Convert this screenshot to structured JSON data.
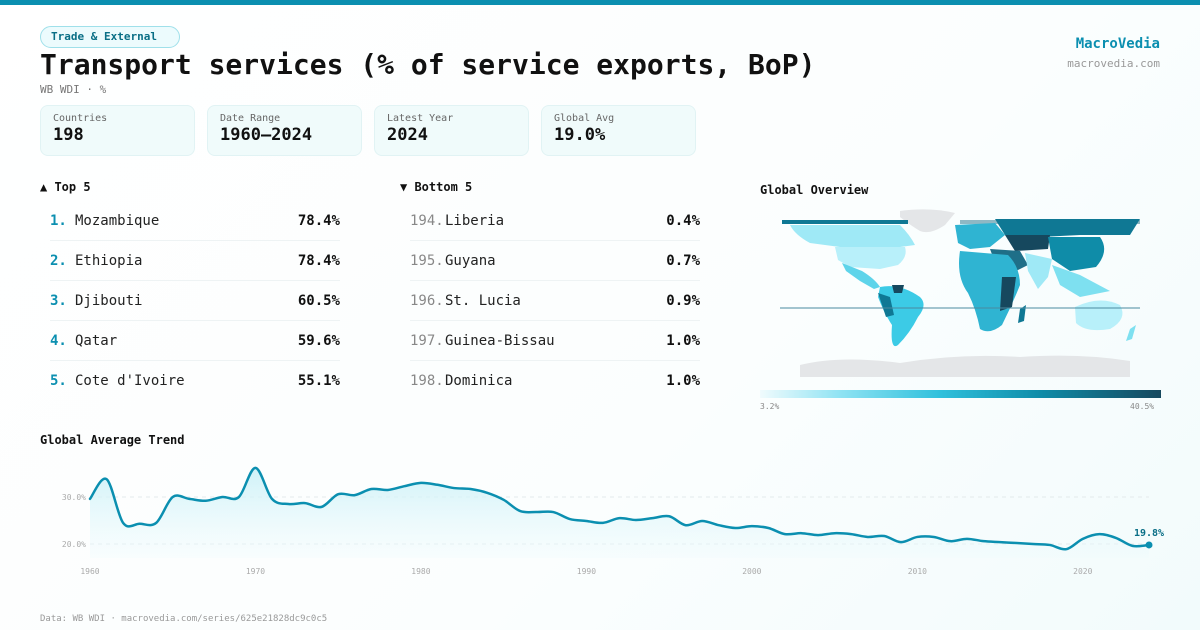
{
  "header": {
    "category_tag": "Trade & External",
    "title": "Transport services (% of service exports, BoP)",
    "subtitle": "WB WDI · %",
    "brand_name": "MacroVedia",
    "brand_url": "macrovedia.com"
  },
  "stats": [
    {
      "label": "Countries",
      "value": "198"
    },
    {
      "label": "Date Range",
      "value": "1960–2024"
    },
    {
      "label": "Latest Year",
      "value": "2024"
    },
    {
      "label": "Global Avg",
      "value": "19.0%"
    }
  ],
  "top5": {
    "title": "▲ Top 5",
    "items": [
      {
        "rank": "1.",
        "name": "Mozambique",
        "value": "78.4%"
      },
      {
        "rank": "2.",
        "name": "Ethiopia",
        "value": "78.4%"
      },
      {
        "rank": "3.",
        "name": "Djibouti",
        "value": "60.5%"
      },
      {
        "rank": "4.",
        "name": "Qatar",
        "value": "59.6%"
      },
      {
        "rank": "5.",
        "name": "Cote d'Ivoire",
        "value": "55.1%"
      }
    ]
  },
  "bottom5": {
    "title": "▼ Bottom 5",
    "items": [
      {
        "rank": "194.",
        "name": "Liberia",
        "value": "0.4%"
      },
      {
        "rank": "195.",
        "name": "Guyana",
        "value": "0.7%"
      },
      {
        "rank": "196.",
        "name": "St. Lucia",
        "value": "0.9%"
      },
      {
        "rank": "197.",
        "name": "Guinea-Bissau",
        "value": "1.0%"
      },
      {
        "rank": "198.",
        "name": "Dominica",
        "value": "1.0%"
      }
    ]
  },
  "map": {
    "title": "Global Overview",
    "legend_min": "3.2%",
    "legend_max": "40.5%",
    "colors": {
      "low": "#f0fbfd",
      "mid": "#2fc0dc",
      "high": "#16485e",
      "nodata": "#e4e6e8"
    }
  },
  "chart_data": {
    "type": "area",
    "title": "Global Average Trend",
    "xlabel": "",
    "ylabel": "",
    "x": [
      1960,
      1961,
      1962,
      1963,
      1964,
      1965,
      1966,
      1967,
      1968,
      1969,
      1970,
      1971,
      1972,
      1973,
      1974,
      1975,
      1976,
      1977,
      1978,
      1979,
      1980,
      1981,
      1982,
      1983,
      1984,
      1985,
      1986,
      1987,
      1988,
      1989,
      1990,
      1991,
      1992,
      1993,
      1994,
      1995,
      1996,
      1997,
      1998,
      1999,
      2000,
      2001,
      2002,
      2003,
      2004,
      2005,
      2006,
      2007,
      2008,
      2009,
      2010,
      2011,
      2012,
      2013,
      2014,
      2015,
      2016,
      2017,
      2018,
      2019,
      2020,
      2021,
      2022,
      2023,
      2024
    ],
    "series": [
      {
        "name": "Global average",
        "values": [
          29.6,
          33.8,
          24.5,
          24.3,
          24.5,
          30.0,
          29.6,
          29.2,
          30.0,
          30.0,
          36.2,
          29.6,
          28.5,
          28.7,
          27.9,
          30.6,
          30.4,
          31.7,
          31.5,
          32.3,
          33.0,
          32.6,
          31.9,
          31.7,
          30.9,
          29.4,
          27.0,
          26.8,
          26.8,
          25.3,
          24.9,
          24.5,
          25.5,
          25.1,
          25.5,
          25.9,
          24.0,
          24.9,
          24.0,
          23.4,
          23.8,
          23.4,
          22.1,
          22.3,
          21.9,
          22.3,
          22.1,
          21.5,
          21.7,
          20.4,
          21.5,
          21.5,
          20.6,
          21.1,
          20.6,
          20.4,
          20.2,
          20.0,
          19.8,
          18.9,
          21.1,
          22.1,
          21.3,
          19.6,
          19.8
        ]
      }
    ],
    "x_ticks": [
      "1960",
      "1970",
      "1980",
      "1990",
      "2000",
      "2010",
      "2020"
    ],
    "y_ticks": [
      "20.0%",
      "30.0%"
    ],
    "y_tick_values": [
      20,
      30
    ],
    "xlim": [
      1960,
      2024
    ],
    "end_label": "19.8%",
    "grid": true,
    "line_color": "#0b8fb0"
  },
  "footer": {
    "source": "Data: WB WDI · macrovedia.com/series/625e21828dc9c0c5"
  }
}
